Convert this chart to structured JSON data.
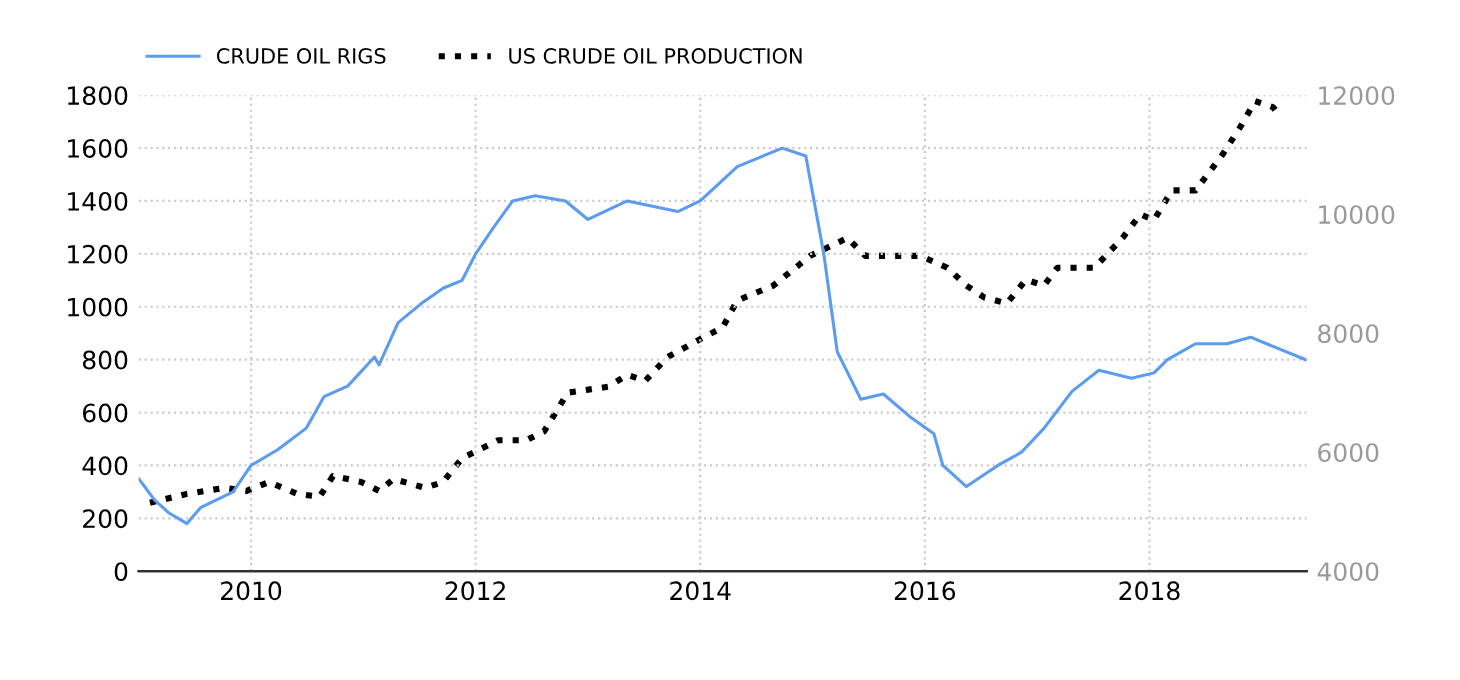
{
  "chart_data": {
    "type": "line",
    "xlim": [
      2009.0,
      2019.4
    ],
    "xticks": [
      2010,
      2012,
      2014,
      2016,
      2018
    ],
    "ylim": [
      0,
      1800
    ],
    "yticks": [
      0,
      200,
      400,
      600,
      800,
      1000,
      1200,
      1400,
      1600,
      1800
    ],
    "y2lim": [
      4000,
      12000
    ],
    "y2ticks": [
      4000,
      6000,
      8000,
      10000,
      12000
    ],
    "grid": true,
    "legend": "top left",
    "series": [
      {
        "name": "CRUDE OIL RIGS",
        "color": "#5b9cf0",
        "line_style": "solid",
        "x": [
          2009.0,
          2009.14,
          2009.27,
          2009.43,
          2009.55,
          2009.84,
          2010.0,
          2010.24,
          2010.49,
          2010.65,
          2010.86,
          2011.1,
          2011.14,
          2011.31,
          2011.51,
          2011.71,
          2011.88,
          2012.0,
          2012.16,
          2012.33,
          2012.53,
          2012.8,
          2013.0,
          2013.35,
          2013.8,
          2014.0,
          2014.33,
          2014.73,
          2014.94,
          2015.1,
          2015.22,
          2015.43,
          2015.63,
          2015.88,
          2016.08,
          2016.16,
          2016.37,
          2016.65,
          2016.86,
          2017.06,
          2017.31,
          2017.55,
          2017.84,
          2018.04,
          2018.16,
          2018.41,
          2018.69,
          2018.9,
          2019.1,
          2019.39
        ],
        "values": [
          350,
          270,
          220,
          180,
          240,
          300,
          400,
          460,
          540,
          660,
          700,
          810,
          780,
          940,
          1010,
          1070,
          1100,
          1200,
          1300,
          1400,
          1420,
          1400,
          1330,
          1400,
          1360,
          1400,
          1530,
          1600,
          1570,
          1200,
          830,
          650,
          670,
          580,
          520,
          400,
          320,
          400,
          450,
          540,
          680,
          760,
          730,
          750,
          800,
          860,
          860,
          885,
          850,
          800
        ]
      },
      {
        "name": "US CRUDE OIL PRODUCTION",
        "color": "#000000",
        "line_style": "dotted",
        "axis": "y2",
        "x": [
          2009.1,
          2009.43,
          2009.76,
          2009.96,
          2010.16,
          2010.41,
          2010.61,
          2010.73,
          2010.98,
          2011.14,
          2011.27,
          2011.55,
          2011.71,
          2011.88,
          2012.2,
          2012.45,
          2012.61,
          2012.82,
          2013.18,
          2013.35,
          2013.51,
          2013.71,
          2014.0,
          2014.2,
          2014.33,
          2014.65,
          2014.98,
          2015.31,
          2015.47,
          2015.96,
          2016.2,
          2016.37,
          2016.53,
          2016.73,
          2016.9,
          2017.06,
          2017.18,
          2017.51,
          2017.76,
          2017.92,
          2018.04,
          2018.2,
          2018.41,
          2018.65,
          2018.82,
          2018.94,
          2019.1,
          2019.14
        ],
        "values": [
          5150,
          5300,
          5400,
          5350,
          5500,
          5300,
          5250,
          5600,
          5500,
          5350,
          5550,
          5400,
          5500,
          5900,
          6200,
          6200,
          6350,
          7000,
          7100,
          7300,
          7200,
          7600,
          7900,
          8100,
          8550,
          8800,
          9300,
          9600,
          9300,
          9300,
          9100,
          8800,
          8600,
          8500,
          8900,
          8800,
          9100,
          9100,
          9600,
          10000,
          9900,
          10400,
          10400,
          11000,
          11500,
          11900,
          11800,
          11700
        ]
      }
    ]
  }
}
